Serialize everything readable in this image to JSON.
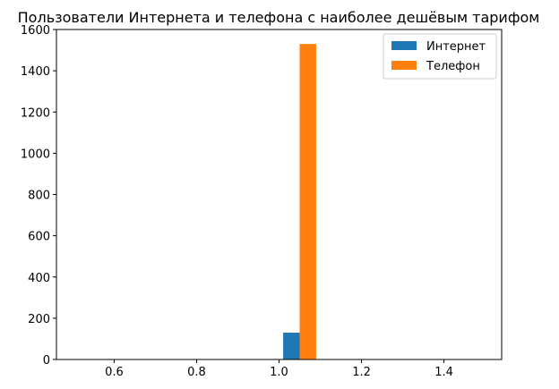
{
  "chart_data": {
    "type": "bar",
    "title": "Пользователи Интернета и телефона с наиболее дешёвым тарифом",
    "xlabel": "",
    "ylabel": "",
    "xlim": [
      0.46,
      1.54
    ],
    "ylim": [
      0,
      1600
    ],
    "xticks": [
      0.6,
      0.8,
      1.0,
      1.2,
      1.4
    ],
    "xtick_labels": [
      "0.6",
      "0.8",
      "1.0",
      "1.2",
      "1.4"
    ],
    "yticks": [
      0,
      200,
      400,
      600,
      800,
      1000,
      1200,
      1400,
      1600
    ],
    "ytick_labels": [
      "0",
      "200",
      "400",
      "600",
      "800",
      "1000",
      "1200",
      "1400",
      "1600"
    ],
    "grid": false,
    "legend_position": "top-right",
    "bar_width": 0.04,
    "series": [
      {
        "name": "Интернет",
        "x": [
          1.03
        ],
        "values": [
          130
        ],
        "color": "#1f77b4"
      },
      {
        "name": "Телефон",
        "x": [
          1.07
        ],
        "values": [
          1530
        ],
        "color": "#ff7f0e"
      }
    ]
  }
}
